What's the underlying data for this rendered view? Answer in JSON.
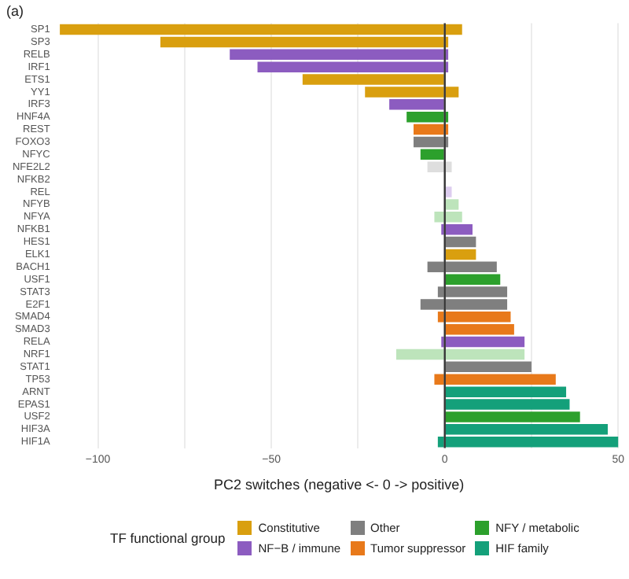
{
  "chart_data": {
    "type": "bar",
    "orientation": "horizontal",
    "stacked": true,
    "title": "(a)",
    "xlabel": "PC2 switches (negative <- 0 -> positive)",
    "legend_title": "TF functional group",
    "categories": [
      "SP1",
      "SP3",
      "RELB",
      "IRF1",
      "ETS1",
      "YY1",
      "IRF3",
      "HNF4A",
      "REST",
      "FOXO3",
      "NFYC",
      "NFE2L2",
      "NFKB2",
      "REL",
      "NFYB",
      "NFYA",
      "NFKB1",
      "HES1",
      "ELK1",
      "BACH1",
      "USF1",
      "STAT3",
      "E2F1",
      "SMAD4",
      "SMAD3",
      "RELA",
      "NRF1",
      "STAT1",
      "TP53",
      "ARNT",
      "EPAS1",
      "USF2",
      "HIF3A",
      "HIF1A"
    ],
    "series": [
      {
        "name": "Constitutive",
        "color": "#d99f0f",
        "values": [
          5,
          1,
          null,
          null,
          null,
          4,
          null,
          null,
          null,
          null,
          null,
          null,
          null,
          null,
          null,
          null,
          null,
          null,
          9,
          null,
          null,
          null,
          null,
          null,
          null,
          null,
          null,
          null,
          null,
          null,
          null,
          null,
          null,
          null
        ]
      },
      {
        "color": "#d99f0f",
        "values": [
          -111,
          -82,
          null,
          null,
          -41,
          -23,
          null,
          null,
          null,
          null,
          null,
          null,
          null,
          null,
          null,
          null,
          null,
          null,
          null,
          null,
          null,
          null,
          null,
          null,
          null,
          null,
          null,
          null,
          null,
          null,
          null,
          null,
          null,
          null
        ]
      },
      {
        "name": "NF−B / immune",
        "color": "#8c5cc0",
        "values": [
          null,
          null,
          1,
          1,
          null,
          null,
          null,
          null,
          null,
          null,
          null,
          null,
          null,
          2,
          null,
          null,
          8,
          null,
          null,
          null,
          null,
          null,
          null,
          null,
          null,
          23,
          null,
          null,
          null,
          null,
          null,
          null,
          null,
          null
        ],
        "colors": [
          null,
          null,
          null,
          null,
          null,
          null,
          null,
          null,
          null,
          null,
          null,
          null,
          null,
          "#ddcdef",
          null,
          null,
          null,
          null,
          null,
          null,
          null,
          null,
          null,
          null,
          null,
          null,
          null,
          null,
          null,
          null,
          null,
          null,
          null,
          null
        ]
      },
      {
        "color": "#8c5cc0",
        "values": [
          null,
          null,
          -62,
          -54,
          null,
          null,
          -16,
          null,
          null,
          null,
          null,
          null,
          null,
          null,
          null,
          null,
          -1,
          null,
          null,
          null,
          null,
          null,
          null,
          null,
          null,
          -1,
          null,
          null,
          null,
          null,
          null,
          null,
          null,
          null
        ]
      },
      {
        "name": "Other",
        "color": "#7f7f7f",
        "values": [
          null,
          null,
          null,
          null,
          null,
          null,
          null,
          null,
          null,
          1,
          null,
          2,
          null,
          null,
          null,
          null,
          null,
          9,
          null,
          15,
          null,
          18,
          18,
          null,
          null,
          null,
          null,
          25,
          null,
          null,
          null,
          null,
          null,
          null
        ],
        "colors": [
          null,
          null,
          null,
          null,
          null,
          null,
          null,
          null,
          null,
          null,
          null,
          "#dedede",
          "#333333",
          null,
          null,
          null,
          null,
          null,
          null,
          null,
          null,
          null,
          null,
          null,
          null,
          null,
          null,
          null,
          null,
          null,
          null,
          null,
          null,
          null
        ]
      },
      {
        "color": "#7f7f7f",
        "values": [
          null,
          null,
          null,
          null,
          null,
          null,
          null,
          null,
          null,
          -9,
          null,
          -5,
          null,
          null,
          null,
          null,
          null,
          null,
          null,
          -5,
          null,
          -2,
          -7,
          null,
          null,
          null,
          null,
          null,
          null,
          null,
          null,
          null,
          null,
          null
        ],
        "colors": [
          null,
          null,
          null,
          null,
          null,
          null,
          null,
          null,
          null,
          null,
          null,
          "#dedede",
          "#333333",
          null,
          null,
          null,
          null,
          null,
          null,
          null,
          null,
          null,
          null,
          null,
          null,
          null,
          null,
          null,
          null,
          null,
          null,
          null,
          null,
          null
        ]
      },
      {
        "name": "Tumor suppressor",
        "color": "#e8791a",
        "values": [
          null,
          null,
          null,
          null,
          null,
          null,
          null,
          null,
          1,
          null,
          null,
          null,
          null,
          null,
          null,
          null,
          null,
          null,
          null,
          null,
          null,
          null,
          null,
          19,
          20,
          null,
          null,
          null,
          32,
          null,
          null,
          null,
          null,
          null
        ]
      },
      {
        "color": "#e8791a",
        "values": [
          null,
          null,
          null,
          null,
          null,
          null,
          null,
          null,
          -9,
          null,
          null,
          null,
          null,
          null,
          null,
          null,
          null,
          null,
          null,
          null,
          null,
          null,
          null,
          -2,
          null,
          null,
          null,
          null,
          -3,
          null,
          null,
          null,
          null,
          null
        ]
      },
      {
        "name": "NFY / metabolic",
        "color": "#2ca02c",
        "values": [
          null,
          null,
          null,
          null,
          null,
          null,
          null,
          1,
          null,
          null,
          null,
          null,
          null,
          null,
          4,
          5,
          null,
          null,
          null,
          null,
          16,
          null,
          null,
          null,
          null,
          null,
          23,
          null,
          null,
          null,
          null,
          39,
          null,
          null
        ],
        "colors": [
          null,
          null,
          null,
          null,
          null,
          null,
          null,
          null,
          null,
          null,
          null,
          null,
          null,
          null,
          "#bde4bb",
          "#bde4bb",
          null,
          null,
          null,
          null,
          null,
          null,
          null,
          null,
          null,
          null,
          "#bde4bb",
          null,
          null,
          null,
          null,
          null,
          null,
          null
        ]
      },
      {
        "color": "#2ca02c",
        "values": [
          null,
          null,
          null,
          null,
          null,
          null,
          null,
          -11,
          null,
          null,
          -7,
          null,
          null,
          null,
          null,
          -3,
          null,
          null,
          null,
          null,
          null,
          null,
          null,
          null,
          null,
          null,
          -14,
          null,
          null,
          null,
          null,
          null,
          null,
          null
        ],
        "colors": [
          null,
          null,
          null,
          null,
          null,
          null,
          null,
          null,
          null,
          null,
          null,
          null,
          null,
          null,
          null,
          "#bde4bb",
          null,
          null,
          null,
          null,
          null,
          null,
          null,
          null,
          null,
          null,
          "#bde4bb",
          null,
          null,
          null,
          null,
          null,
          null,
          null
        ]
      },
      {
        "name": "HIF family",
        "color": "#14a07a",
        "values": [
          null,
          null,
          null,
          null,
          null,
          null,
          null,
          null,
          null,
          null,
          null,
          null,
          null,
          null,
          null,
          null,
          null,
          null,
          null,
          null,
          null,
          null,
          null,
          null,
          null,
          null,
          null,
          null,
          null,
          35,
          36,
          null,
          47,
          50
        ]
      },
      {
        "color": "#14a07a",
        "values": [
          null,
          null,
          null,
          null,
          null,
          null,
          null,
          null,
          null,
          null,
          null,
          null,
          null,
          null,
          null,
          null,
          null,
          null,
          null,
          null,
          null,
          null,
          null,
          null,
          null,
          null,
          null,
          null,
          null,
          null,
          null,
          null,
          null,
          -2
        ]
      }
    ],
    "xlim": [
      -112,
      51
    ],
    "xticks": [
      {
        "value": -100,
        "label": "−100"
      },
      {
        "value": -75,
        "label": null
      },
      {
        "value": -50,
        "label": "−50"
      },
      {
        "value": -25,
        "label": null
      },
      0,
      {
        "value": 25,
        "label": null
      },
      50
    ],
    "ref_lines": [
      {
        "axis": "x",
        "value": 0,
        "color": "#333333"
      }
    ],
    "grid": "x",
    "legend": "bottom"
  }
}
